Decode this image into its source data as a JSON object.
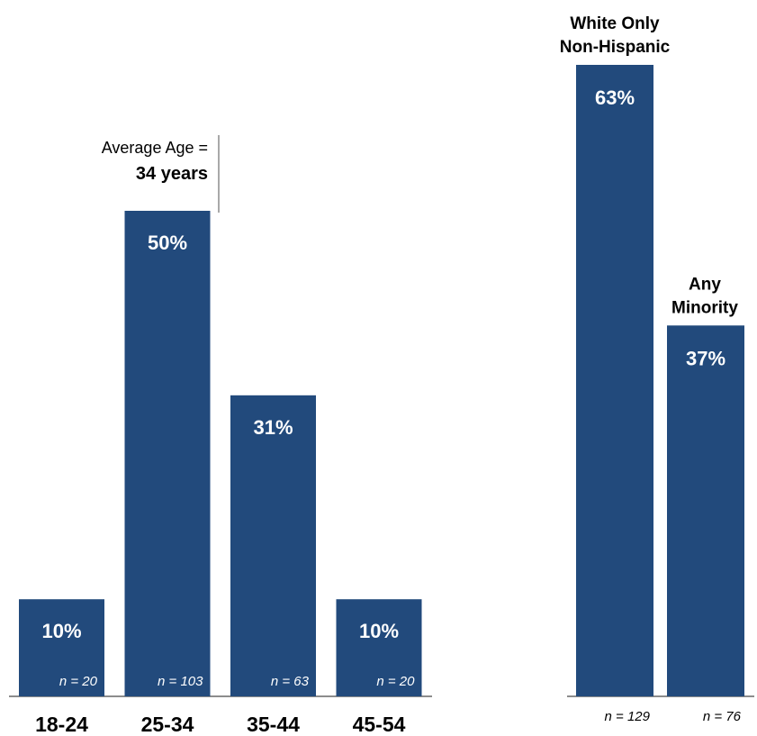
{
  "colors": {
    "bar": "#224a7c",
    "axis": "#8c8c8c",
    "n_inside": "#ffffff",
    "n_outside": "#000000"
  },
  "chart_data": [
    {
      "type": "bar",
      "categories": [
        "18-24",
        "25-34",
        "35-44",
        "45-54"
      ],
      "values": [
        10,
        50,
        31,
        10
      ],
      "value_labels": [
        "10%",
        "50%",
        "31%",
        "10%"
      ],
      "n_labels": [
        "n = 20",
        "n = 103",
        "n = 63",
        "n = 20"
      ],
      "ylim": [
        0,
        55
      ],
      "annotation": {
        "line1": "Average Age =",
        "line2": "34 years"
      }
    },
    {
      "type": "bar",
      "categories": [
        [
          "White Only",
          "Non-Hispanic"
        ],
        [
          "Any",
          "Minority"
        ]
      ],
      "values": [
        63,
        37
      ],
      "value_labels": [
        "63%",
        "37%"
      ],
      "n_labels": [
        "n = 129",
        "n = 76"
      ],
      "ylim": [
        0,
        63
      ]
    }
  ]
}
